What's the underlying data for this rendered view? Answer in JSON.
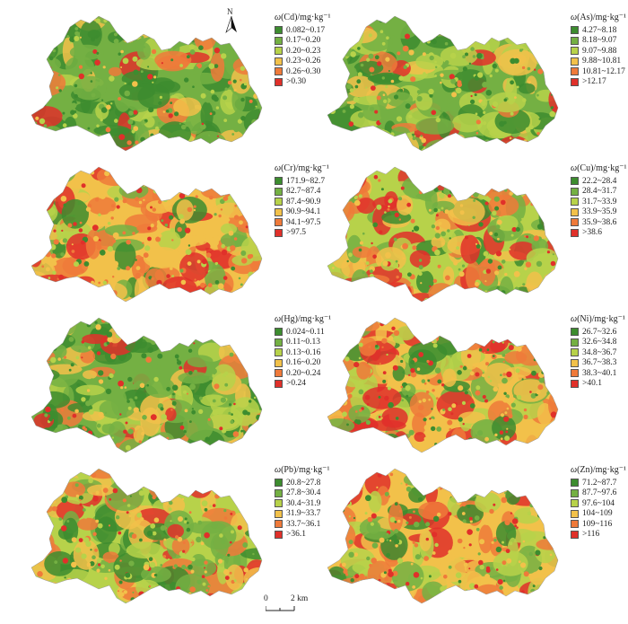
{
  "colors": [
    "#3d8c2f",
    "#74b043",
    "#b7d24a",
    "#f2c14a",
    "#ef7a3a",
    "#e0302a"
  ],
  "panels": [
    {
      "title_prefix": "ω",
      "title_rest": "(Cd)/mg·kg⁻¹",
      "classes": [
        "0.082~0.17",
        "0.17~0.20",
        "0.20~0.23",
        "0.23~0.26",
        "0.26~0.30",
        ">0.30"
      ],
      "mix": [
        0.3,
        0.28,
        0.18,
        0.1,
        0.08,
        0.06
      ]
    },
    {
      "title_prefix": "ω",
      "title_rest": "(As)/mg·kg⁻¹",
      "classes": [
        "4.27~8.18",
        "8.18~9.07",
        "9.07~9.88",
        "9.88~10.81",
        "10.81~12.17",
        ">12.17"
      ],
      "mix": [
        0.22,
        0.26,
        0.26,
        0.12,
        0.08,
        0.06
      ]
    },
    {
      "title_prefix": "ω",
      "title_rest": "(Cr)/mg·kg⁻¹",
      "classes": [
        "171.9~82.7",
        "82.7~87.4",
        "87.4~90.9",
        "90.9~94.1",
        "94.1~97.5",
        ">97.5"
      ],
      "mix": [
        0.06,
        0.1,
        0.14,
        0.24,
        0.28,
        0.18
      ]
    },
    {
      "title_prefix": "ω",
      "title_rest": "(Cu)/mg·kg⁻¹",
      "classes": [
        "22.2~28.4",
        "28.4~31.7",
        "31.7~33.9",
        "33.9~35.9",
        "35.9~38.6",
        ">38.6"
      ],
      "mix": [
        0.1,
        0.18,
        0.18,
        0.22,
        0.18,
        0.14
      ]
    },
    {
      "title_prefix": "ω",
      "title_rest": "(Hg)/mg·kg⁻¹",
      "classes": [
        "0.024~0.11",
        "0.11~0.13",
        "0.13~0.16",
        "0.16~0.20",
        "0.20~0.24",
        ">0.24"
      ],
      "mix": [
        0.3,
        0.22,
        0.16,
        0.12,
        0.1,
        0.1
      ]
    },
    {
      "title_prefix": "ω",
      "title_rest": "(Ni)/mg·kg⁻¹",
      "classes": [
        "26.7~32.6",
        "32.6~34.8",
        "34.8~36.7",
        "36.7~38.3",
        "38.3~40.1",
        ">40.1"
      ],
      "mix": [
        0.14,
        0.14,
        0.16,
        0.18,
        0.2,
        0.18
      ]
    },
    {
      "title_prefix": "ω",
      "title_rest": "(Pb)/mg·kg⁻¹",
      "classes": [
        "20.8~27.8",
        "27.8~30.4",
        "30.4~31.9",
        "31.9~33.7",
        "33.7~36.1",
        ">36.1"
      ],
      "mix": [
        0.12,
        0.18,
        0.22,
        0.2,
        0.14,
        0.14
      ]
    },
    {
      "title_prefix": "ω",
      "title_rest": "(Zn)/mg·kg⁻¹",
      "classes": [
        "71.2~87.7",
        "87.7~97.6",
        "97.6~104",
        "104~109",
        "109~116",
        ">116"
      ],
      "mix": [
        0.1,
        0.12,
        0.16,
        0.24,
        0.2,
        0.18
      ]
    }
  ],
  "north_label": "N",
  "scale": {
    "start": "0",
    "end": "2 km"
  }
}
